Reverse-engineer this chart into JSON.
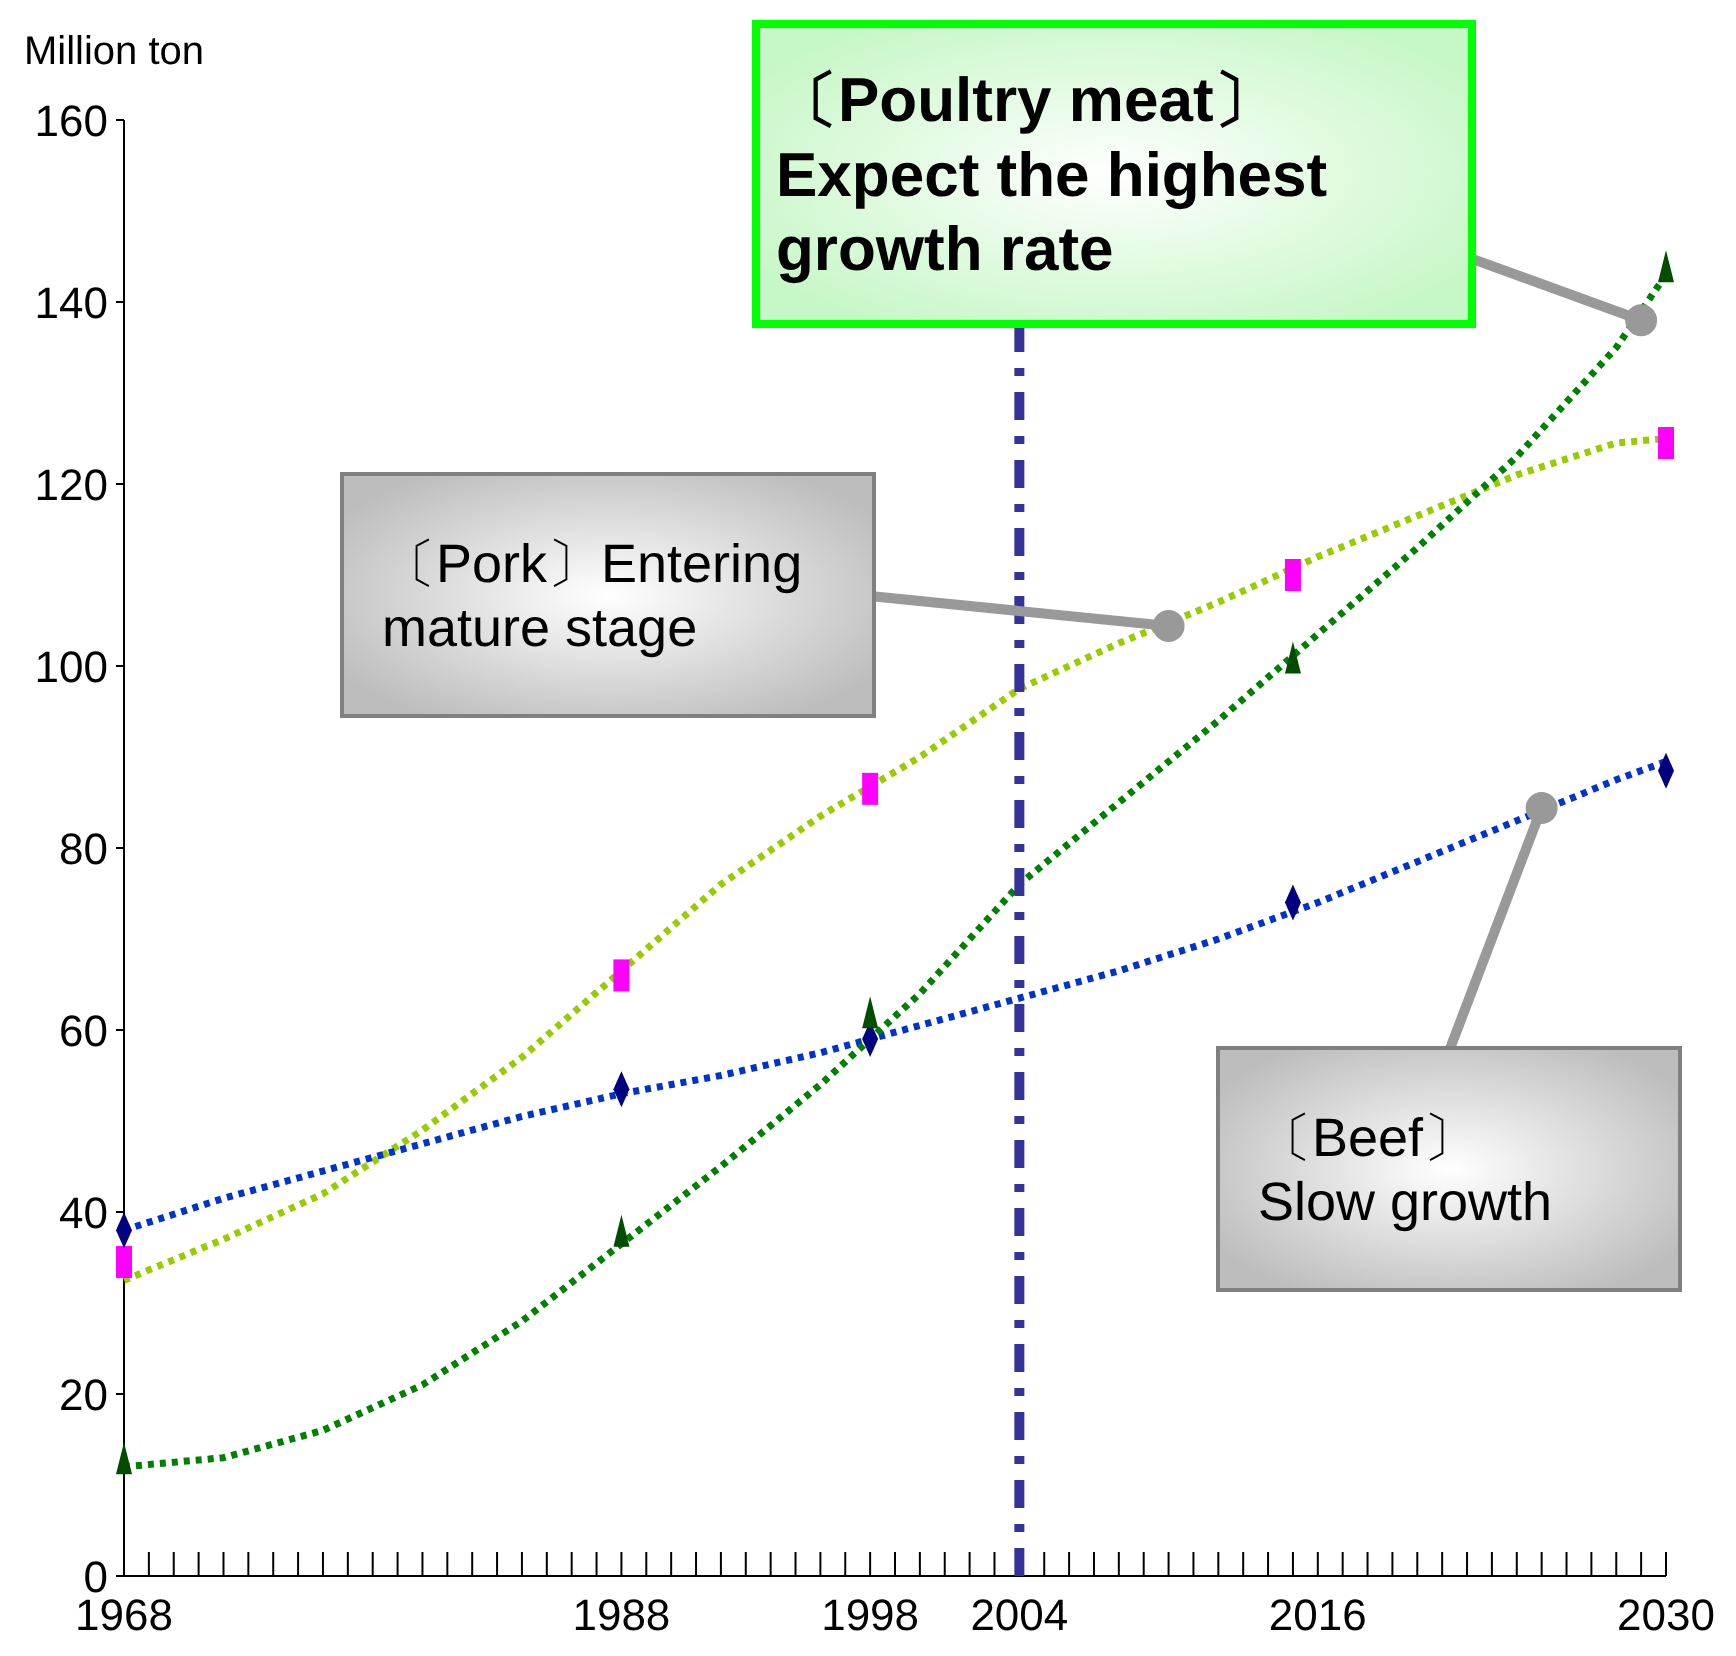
{
  "chart_data": {
    "type": "line",
    "ylabel": "Million ton",
    "xlim": [
      1968,
      2030
    ],
    "xticks": [
      1968,
      {
        "value": 1969,
        "label": null
      },
      {
        "value": 1970,
        "label": null
      },
      {
        "value": 1971,
        "label": null
      },
      {
        "value": 1972,
        "label": null
      },
      {
        "value": 1973,
        "label": null
      },
      {
        "value": 1974,
        "label": null
      },
      {
        "value": 1975,
        "label": null
      },
      {
        "value": 1976,
        "label": null
      },
      {
        "value": 1977,
        "label": null
      },
      {
        "value": 1978,
        "label": null
      },
      {
        "value": 1979,
        "label": null
      },
      {
        "value": 1980,
        "label": null
      },
      {
        "value": 1981,
        "label": null
      },
      {
        "value": 1982,
        "label": null
      },
      {
        "value": 1983,
        "label": null
      },
      {
        "value": 1984,
        "label": null
      },
      {
        "value": 1985,
        "label": null
      },
      {
        "value": 1986,
        "label": null
      },
      {
        "value": 1987,
        "label": null
      },
      1988,
      {
        "value": 1989,
        "label": null
      },
      {
        "value": 1990,
        "label": null
      },
      {
        "value": 1991,
        "label": null
      },
      {
        "value": 1992,
        "label": null
      },
      {
        "value": 1993,
        "label": null
      },
      {
        "value": 1994,
        "label": null
      },
      {
        "value": 1995,
        "label": null
      },
      {
        "value": 1996,
        "label": null
      },
      {
        "value": 1997,
        "label": null
      },
      1998,
      {
        "value": 1999,
        "label": null
      },
      {
        "value": 2000,
        "label": null
      },
      {
        "value": 2001,
        "label": null
      },
      {
        "value": 2002,
        "label": null
      },
      {
        "value": 2003,
        "label": null
      },
      2004,
      {
        "value": 2005,
        "label": null
      },
      {
        "value": 2006,
        "label": null
      },
      {
        "value": 2007,
        "label": null
      },
      {
        "value": 2008,
        "label": null
      },
      {
        "value": 2009,
        "label": null
      },
      {
        "value": 2010,
        "label": null
      },
      {
        "value": 2011,
        "label": null
      },
      {
        "value": 2012,
        "label": null
      },
      {
        "value": 2013,
        "label": null
      },
      {
        "value": 2014,
        "label": null
      },
      {
        "value": 2015,
        "label": null
      },
      2016,
      {
        "value": 2017,
        "label": null
      },
      {
        "value": 2018,
        "label": null
      },
      {
        "value": 2019,
        "label": null
      },
      {
        "value": 2020,
        "label": null
      },
      {
        "value": 2021,
        "label": null
      },
      {
        "value": 2022,
        "label": null
      },
      {
        "value": 2023,
        "label": null
      },
      {
        "value": 2024,
        "label": null
      },
      {
        "value": 2025,
        "label": null
      },
      {
        "value": 2026,
        "label": null
      },
      {
        "value": 2027,
        "label": null
      },
      {
        "value": 2028,
        "label": null
      },
      {
        "value": 2029,
        "label": null
      },
      2030
    ],
    "ylim": [
      0,
      160
    ],
    "yticks": [
      0,
      20,
      40,
      60,
      80,
      100,
      120,
      140,
      160
    ],
    "series": [
      {
        "type": "line",
        "line_style": "dotted",
        "color": "#99cc00",
        "x": [
          1968,
          1972,
          1976,
          1980,
          1984,
          1988,
          1992,
          1996,
          2000,
          2004,
          2008,
          2012,
          2016,
          2020,
          2024,
          2028,
          2030
        ],
        "values": [
          32.5,
          37,
          42,
          49,
          57,
          66.5,
          76,
          83.5,
          90,
          97.5,
          102.5,
          107,
          112,
          116.5,
          121,
          124.5,
          125
        ]
      },
      {
        "type": "line",
        "line_style": "dotted",
        "color": "#0033cc",
        "x": [
          1968,
          1972,
          1976,
          1980,
          1984,
          1988,
          1992,
          1996,
          2000,
          2004,
          2008,
          2012,
          2016,
          2020,
          2024,
          2028,
          2030
        ],
        "values": [
          38,
          41.5,
          44.5,
          47.5,
          50.5,
          53,
          55,
          57.5,
          60.5,
          63.5,
          66.5,
          70,
          74,
          78.5,
          83,
          87.5,
          89.5
        ]
      },
      {
        "type": "line",
        "line_style": "dotted",
        "color": "#008000",
        "x": [
          1968,
          1972,
          1976,
          1980,
          1984,
          1988,
          1992,
          1996,
          2000,
          2004,
          2008,
          2012,
          2016,
          2020,
          2024,
          2028,
          2030
        ],
        "values": [
          12,
          13,
          16,
          21,
          28,
          36.5,
          45,
          54,
          64,
          76,
          85,
          94,
          103.5,
          113,
          123,
          135,
          143
        ]
      },
      {
        "type": "scatter",
        "marker": "square",
        "color": "#ff00ff",
        "x": [
          1968,
          1988,
          1998,
          2015,
          2030
        ],
        "values": [
          34.5,
          66,
          86.5,
          110,
          124.5
        ]
      },
      {
        "type": "scatter",
        "marker": "diamond",
        "color": "#000080",
        "x": [
          1968,
          1988,
          1998,
          2015,
          2030
        ],
        "values": [
          38,
          53.5,
          59,
          74,
          88.5
        ]
      },
      {
        "type": "scatter",
        "marker": "triangle",
        "color": "#004d00",
        "x": [
          1968,
          1988,
          1998,
          2015,
          2030
        ],
        "values": [
          12.5,
          37.5,
          61.5,
          100.5,
          143.5
        ]
      }
    ],
    "ref_lines": [
      {
        "axis": "x",
        "value": 2004,
        "color": "#333399",
        "line_style": "dashdot"
      }
    ],
    "annotations": [
      {
        "text": "〔Poultry meat〕Expect the highest growth rate",
        "x": 2029,
        "y": 138
      },
      {
        "text": "〔Pork〕Entering mature stage",
        "x": 2010,
        "y": 104.4
      },
      {
        "text": "〔Beef〕Slow growth",
        "x": 2025,
        "y": 84.4
      }
    ]
  }
}
